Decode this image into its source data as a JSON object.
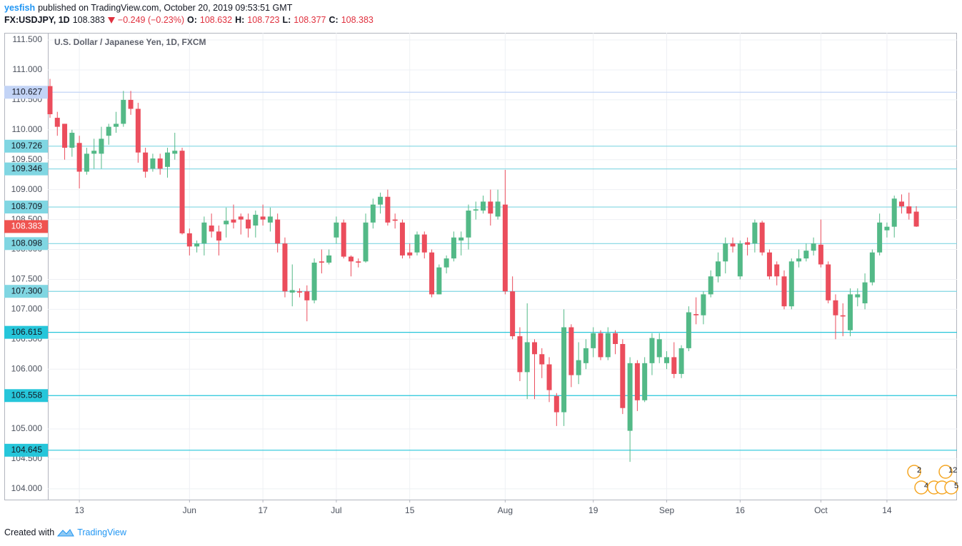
{
  "header": {
    "author": "yesfish",
    "published": "published on TradingView.com, October 20, 2019 09:53:51 GMT",
    "symbol": "FX:USDJPY, 1D",
    "change": "−0.249 (−0.23%)",
    "o_label": "O:",
    "h_label": "H:",
    "l_label": "L:",
    "c_label": "C:"
  },
  "footer": {
    "created": "Created with",
    "brand": "TradingView"
  },
  "event_badges": [
    "2",
    "12",
    "4",
    "2",
    "4",
    "5"
  ],
  "chart_data": {
    "type": "candlestick",
    "title": "U.S. Dollar / Japanese Yen, 1D, FXCM",
    "up_color": "#53b987",
    "down_color": "#eb4d5c",
    "last_price_color": "#ef5350",
    "grid": true,
    "categories": [
      null,
      null,
      null,
      null,
      "13",
      null,
      null,
      null,
      null,
      null,
      null,
      null,
      null,
      null,
      null,
      null,
      null,
      null,
      null,
      "Jun",
      null,
      null,
      null,
      null,
      null,
      null,
      null,
      null,
      null,
      "17",
      null,
      null,
      null,
      null,
      null,
      null,
      null,
      null,
      null,
      "Jul",
      null,
      null,
      null,
      null,
      null,
      null,
      null,
      null,
      null,
      "15",
      null,
      null,
      null,
      null,
      null,
      null,
      null,
      null,
      null,
      null,
      null,
      null,
      "Aug",
      null,
      null,
      null,
      null,
      null,
      null,
      null,
      null,
      null,
      null,
      null,
      "19",
      null,
      null,
      null,
      null,
      null,
      null,
      null,
      null,
      null,
      "Sep",
      null,
      null,
      null,
      null,
      null,
      null,
      null,
      null,
      null,
      "16",
      null,
      null,
      null,
      null,
      null,
      null,
      null,
      null,
      null,
      null,
      "Oct",
      null,
      null,
      null,
      null,
      null,
      null,
      null,
      null,
      "14",
      null,
      null,
      null,
      null
    ],
    "open": [
      110.73,
      110.2,
      110.1,
      109.7,
      109.78,
      109.3,
      109.6,
      109.6,
      109.9,
      110.05,
      110.1,
      110.5,
      110.35,
      109.62,
      109.35,
      109.52,
      109.38,
      109.6,
      109.65,
      108.27,
      108.05,
      108.1,
      108.4,
      108.3,
      108.42,
      108.5,
      108.55,
      108.5,
      108.4,
      108.55,
      108.45,
      108.5,
      108.1,
      107.28,
      107.3,
      107.3,
      107.15,
      107.8,
      107.78,
      108.2,
      108.45,
      107.88,
      107.8,
      107.8,
      108.45,
      108.75,
      108.88,
      108.5,
      108.45,
      107.95,
      107.95,
      108.25,
      107.95,
      107.25,
      107.7,
      107.85,
      108.15,
      108.2,
      108.65,
      108.65,
      108.8,
      108.55,
      108.75,
      107.3,
      106.55,
      105.95,
      106.45,
      106.25,
      106.08,
      105.55,
      105.28,
      106.7,
      105.9,
      106.1,
      106.35,
      106.6,
      106.2,
      106.6,
      106.42,
      104.97,
      106.1,
      105.48,
      106.1,
      106.2,
      106.1,
      106.2,
      105.92,
      106.35,
      106.92,
      106.9,
      107.25,
      107.55,
      107.8,
      108.1,
      107.55,
      108.12,
      108.1,
      108.45,
      107.95,
      107.75,
      107.55,
      107.05,
      107.8,
      107.85,
      107.98,
      108.08,
      107.75,
      107.15,
      106.9,
      106.65,
      107.2,
      107.1,
      107.45,
      107.95,
      108.32,
      108.38,
      108.8,
      108.72,
      108.632
    ],
    "high": [
      110.85,
      110.3,
      110.1,
      110.0,
      109.9,
      109.7,
      109.85,
      110.05,
      110.1,
      110.3,
      110.65,
      110.65,
      110.45,
      109.7,
      109.6,
      109.6,
      109.7,
      109.95,
      109.7,
      108.35,
      108.15,
      108.55,
      108.6,
      108.4,
      108.7,
      108.75,
      108.6,
      108.6,
      108.65,
      108.75,
      108.7,
      108.6,
      108.2,
      107.75,
      107.35,
      107.4,
      107.85,
      108.0,
      108.0,
      108.55,
      108.5,
      107.9,
      107.85,
      108.6,
      108.85,
      108.95,
      109.0,
      108.6,
      108.5,
      108.1,
      108.3,
      108.3,
      108.0,
      107.75,
      107.9,
      108.3,
      108.3,
      108.75,
      108.8,
      108.9,
      109.0,
      109.0,
      109.33,
      107.55,
      106.7,
      107.1,
      106.5,
      106.35,
      106.2,
      105.6,
      107.0,
      106.75,
      106.45,
      106.5,
      106.7,
      106.65,
      106.7,
      106.65,
      106.5,
      106.2,
      106.15,
      106.2,
      106.6,
      106.6,
      106.3,
      106.45,
      106.4,
      107.05,
      107.2,
      107.3,
      107.65,
      107.95,
      108.2,
      108.2,
      108.15,
      108.2,
      108.5,
      108.48,
      108.0,
      107.8,
      107.65,
      107.85,
      108.0,
      108.1,
      108.2,
      108.5,
      107.8,
      107.25,
      107.1,
      107.35,
      107.35,
      107.6,
      108.0,
      108.6,
      108.45,
      108.9,
      108.92,
      108.95,
      108.723
    ],
    "low": [
      110.2,
      109.9,
      109.5,
      109.55,
      109.02,
      109.25,
      109.35,
      109.35,
      109.75,
      109.95,
      110.05,
      110.25,
      109.45,
      109.2,
      109.3,
      109.25,
      109.2,
      109.5,
      108.25,
      107.9,
      107.95,
      107.9,
      108.2,
      107.9,
      108.2,
      108.35,
      108.25,
      108.2,
      108.2,
      108.4,
      108.3,
      107.95,
      107.2,
      107.05,
      107.2,
      106.8,
      107.1,
      107.6,
      107.75,
      108.1,
      107.85,
      107.55,
      107.7,
      107.78,
      108.35,
      108.6,
      108.4,
      108.35,
      107.85,
      107.85,
      107.9,
      107.85,
      107.2,
      107.25,
      107.6,
      107.8,
      107.9,
      108.0,
      108.5,
      108.6,
      108.4,
      108.5,
      107.25,
      106.5,
      105.8,
      105.5,
      105.5,
      105.85,
      105.45,
      105.05,
      105.05,
      105.7,
      105.75,
      106.0,
      106.2,
      106.15,
      106.15,
      106.25,
      105.25,
      104.45,
      105.3,
      105.45,
      105.9,
      106.1,
      106.0,
      105.85,
      105.85,
      106.3,
      106.75,
      106.75,
      107.2,
      107.45,
      107.6,
      107.95,
      107.5,
      107.9,
      107.95,
      107.9,
      107.5,
      107.4,
      107.0,
      107.0,
      107.7,
      107.8,
      107.9,
      107.7,
      107.1,
      106.5,
      106.55,
      106.55,
      107.05,
      107.0,
      107.4,
      107.9,
      108.2,
      108.2,
      108.6,
      108.5,
      108.377
    ],
    "close": [
      110.26,
      110.05,
      109.7,
      109.95,
      109.3,
      109.6,
      109.65,
      109.85,
      110.05,
      110.1,
      110.5,
      110.35,
      109.62,
      109.3,
      109.52,
      109.35,
      109.62,
      109.65,
      108.27,
      108.05,
      108.1,
      108.45,
      108.3,
      108.15,
      108.48,
      108.45,
      108.5,
      108.35,
      108.58,
      108.5,
      108.55,
      108.1,
      107.3,
      107.32,
      107.28,
      107.15,
      107.78,
      107.78,
      107.9,
      108.45,
      107.88,
      107.8,
      107.78,
      108.45,
      108.75,
      108.88,
      108.45,
      108.48,
      107.9,
      107.9,
      108.25,
      107.95,
      107.25,
      107.7,
      107.85,
      108.2,
      108.2,
      108.65,
      108.67,
      108.8,
      108.6,
      108.8,
      107.3,
      106.55,
      105.95,
      106.45,
      106.25,
      106.08,
      105.65,
      105.28,
      106.7,
      105.9,
      106.15,
      106.35,
      106.6,
      106.2,
      106.6,
      106.42,
      105.35,
      106.1,
      105.48,
      106.1,
      106.52,
      106.5,
      106.2,
      105.92,
      106.35,
      106.95,
      106.9,
      107.25,
      107.55,
      107.8,
      108.1,
      108.05,
      108.1,
      108.08,
      108.45,
      107.95,
      107.55,
      107.55,
      107.05,
      107.8,
      107.85,
      107.98,
      108.1,
      107.75,
      107.15,
      106.9,
      106.88,
      107.25,
      107.25,
      107.45,
      107.95,
      108.45,
      108.38,
      108.85,
      108.72,
      108.6,
      108.383
    ],
    "ylim": [
      103.82,
      111.62
    ],
    "yticks": [
      {
        "value": 104,
        "label": "104.000"
      },
      {
        "value": 104.5,
        "label": "104.500"
      },
      {
        "value": 105,
        "label": "105.000"
      },
      {
        "value": 105.5,
        "label": "105.500"
      },
      {
        "value": 106,
        "label": "106.000"
      },
      {
        "value": 106.5,
        "label": "106.500"
      },
      {
        "value": 107,
        "label": "107.000"
      },
      {
        "value": 107.5,
        "label": "107.500"
      },
      {
        "value": 108,
        "label": "108.000"
      },
      {
        "value": 108.5,
        "label": "108.500"
      },
      {
        "value": 109,
        "label": "109.000"
      },
      {
        "value": 109.5,
        "label": "109.500"
      },
      {
        "value": 110,
        "label": "110.000"
      },
      {
        "value": 110.5,
        "label": "110.500"
      },
      {
        "value": 111,
        "label": "111.000"
      },
      {
        "value": 111.5,
        "label": "111.500"
      }
    ],
    "levels": [
      {
        "value": 110.627,
        "color": "#c3d4f6"
      },
      {
        "value": 109.726,
        "color": "#80d6e2"
      },
      {
        "value": 109.346,
        "color": "#80d6e2"
      },
      {
        "value": 108.709,
        "color": "#80d6e2"
      },
      {
        "value": 108.098,
        "color": "#80d6e2"
      },
      {
        "value": 107.3,
        "label": "107.300",
        "color": "#80d6e2"
      },
      {
        "value": 106.615,
        "color": "#26c6da"
      },
      {
        "value": 105.558,
        "color": "#26c6da"
      },
      {
        "value": 104.645,
        "color": "#26c6da"
      }
    ]
  }
}
